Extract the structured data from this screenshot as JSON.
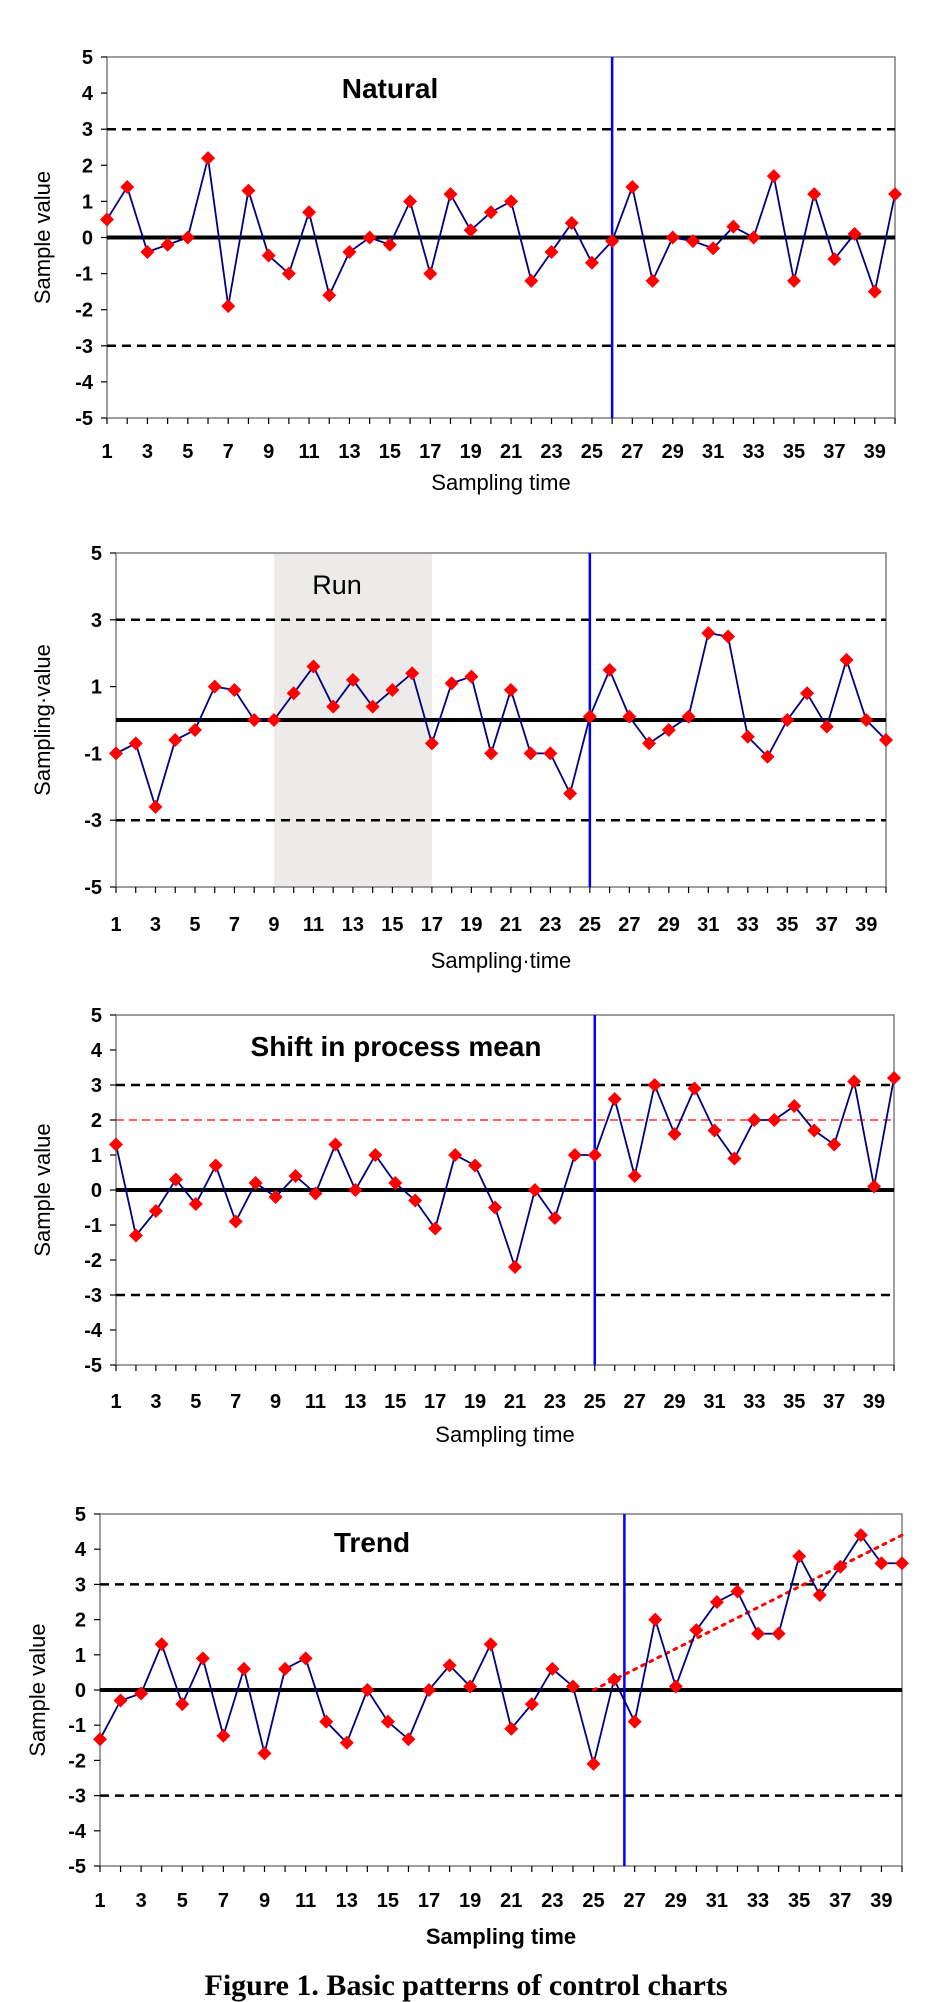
{
  "chart_data": [
    {
      "type": "line",
      "title": "Natural",
      "xlabel": "Sampling time",
      "ylabel": "Sample value",
      "ylim": [
        -5,
        5
      ],
      "yticks": [
        5,
        4,
        3,
        2,
        1,
        0,
        -1,
        -2,
        -3,
        -4,
        -5
      ],
      "xtick_labels": [
        1,
        3,
        5,
        7,
        9,
        11,
        13,
        15,
        17,
        19,
        21,
        23,
        25,
        27,
        29,
        31,
        33,
        35,
        37,
        39
      ],
      "control_limits": {
        "center": 0,
        "upper": 3,
        "lower": -3
      },
      "change_point": 26,
      "x": [
        1,
        2,
        3,
        4,
        5,
        6,
        7,
        8,
        9,
        10,
        11,
        12,
        13,
        14,
        15,
        16,
        17,
        18,
        19,
        20,
        21,
        22,
        23,
        24,
        25,
        26,
        27,
        28,
        29,
        30,
        31,
        32,
        33,
        34,
        35,
        36,
        37,
        38,
        39,
        40
      ],
      "values": [
        0.5,
        1.4,
        -0.4,
        -0.2,
        0.0,
        2.2,
        -1.9,
        1.3,
        -0.5,
        -1.0,
        0.7,
        -1.6,
        -0.4,
        0.0,
        -0.2,
        1.0,
        -1.0,
        1.2,
        0.2,
        0.7,
        1.0,
        -1.2,
        -0.4,
        0.4,
        -0.7,
        -0.1,
        1.4,
        -1.2,
        0.0,
        -0.1,
        -0.3,
        0.3,
        0.0,
        1.7,
        -1.2,
        1.2,
        -0.6,
        0.1,
        -1.5,
        1.2
      ],
      "line_color": "#000080",
      "marker_color": "#ff0000",
      "change_line_color": "#0000ff"
    },
    {
      "type": "line",
      "title": "Run",
      "xlabel": "Sampling·time",
      "ylabel": "Sampling·value",
      "ylim": [
        -5,
        5
      ],
      "yticks": [
        5,
        3,
        1,
        -1,
        -3,
        -5
      ],
      "xtick_labels": [
        1,
        3,
        5,
        7,
        9,
        11,
        13,
        15,
        17,
        19,
        21,
        23,
        25,
        27,
        29,
        31,
        33,
        35,
        37,
        39
      ],
      "control_limits": {
        "center": 0,
        "upper": 3,
        "lower": -3
      },
      "change_point": 25,
      "highlight_range": [
        9,
        17
      ],
      "x": [
        1,
        2,
        3,
        4,
        5,
        6,
        7,
        8,
        9,
        10,
        11,
        12,
        13,
        14,
        15,
        16,
        17,
        18,
        19,
        20,
        21,
        22,
        23,
        24,
        25,
        26,
        27,
        28,
        29,
        30,
        31,
        32,
        33,
        34,
        35,
        36,
        37,
        38,
        39,
        40
      ],
      "values": [
        -1.0,
        -0.7,
        -2.6,
        -0.6,
        -0.3,
        1.0,
        0.9,
        0.0,
        0.0,
        0.8,
        1.6,
        0.4,
        1.2,
        0.4,
        0.9,
        1.4,
        -0.7,
        1.1,
        1.3,
        -1.0,
        0.9,
        -1.0,
        -1.0,
        -2.2,
        0.1,
        1.5,
        0.1,
        -0.7,
        -0.3,
        0.1,
        2.6,
        2.5,
        -0.5,
        -1.1,
        0.0,
        0.8,
        -0.2,
        1.8,
        0.0,
        -0.6
      ],
      "line_color": "#000080",
      "marker_color": "#ff0000",
      "change_line_color": "#0000ff",
      "highlight_color": "#ecebea"
    },
    {
      "type": "line",
      "title": "Shift in process mean",
      "xlabel": "Sampling time",
      "ylabel": "Sample value",
      "ylim": [
        -5,
        5
      ],
      "yticks": [
        5,
        4,
        3,
        2,
        1,
        0,
        -1,
        -2,
        -3,
        -4,
        -5
      ],
      "xtick_labels": [
        1,
        3,
        5,
        7,
        9,
        11,
        13,
        15,
        17,
        19,
        21,
        23,
        25,
        27,
        29,
        31,
        33,
        35,
        37,
        39
      ],
      "control_limits": {
        "center": 0,
        "upper": 3,
        "lower": -3
      },
      "shifted_mean": 2,
      "change_point": 25,
      "x": [
        1,
        2,
        3,
        4,
        5,
        6,
        7,
        8,
        9,
        10,
        11,
        12,
        13,
        14,
        15,
        16,
        17,
        18,
        19,
        20,
        21,
        22,
        23,
        24,
        25,
        26,
        27,
        28,
        29,
        30,
        31,
        32,
        33,
        34,
        35,
        36,
        37,
        38,
        39,
        40
      ],
      "values": [
        1.3,
        -1.3,
        -0.6,
        0.3,
        -0.4,
        0.7,
        -0.9,
        0.2,
        -0.2,
        0.4,
        -0.1,
        1.3,
        0.0,
        1.0,
        0.2,
        -0.3,
        -1.1,
        1.0,
        0.7,
        -0.5,
        -2.2,
        0.0,
        -0.8,
        1.0,
        1.0,
        2.6,
        0.4,
        3.0,
        1.6,
        2.9,
        1.7,
        0.9,
        2.0,
        2.0,
        2.4,
        1.7,
        1.3,
        3.1,
        0.1,
        3.2
      ],
      "line_color": "#000080",
      "marker_color": "#ff0000",
      "change_line_color": "#0000ff",
      "shift_line_color": "#ff0000"
    },
    {
      "type": "line",
      "title": "Trend",
      "xlabel": "Sampling time",
      "ylabel": "Sample value",
      "ylim": [
        -5,
        5
      ],
      "yticks": [
        5,
        4,
        3,
        2,
        1,
        0,
        -1,
        -2,
        -3,
        -4,
        -5
      ],
      "xtick_labels": [
        1,
        3,
        5,
        7,
        9,
        11,
        13,
        15,
        17,
        19,
        21,
        23,
        25,
        27,
        29,
        31,
        33,
        35,
        37,
        39
      ],
      "control_limits": {
        "center": 0,
        "upper": 3,
        "lower": -3
      },
      "change_point": 26.5,
      "trend_line": {
        "x": [
          25,
          40
        ],
        "y": [
          0.0,
          4.4
        ]
      },
      "x": [
        1,
        2,
        3,
        4,
        5,
        6,
        7,
        8,
        9,
        10,
        11,
        12,
        13,
        14,
        15,
        16,
        17,
        18,
        19,
        20,
        21,
        22,
        23,
        24,
        25,
        26,
        27,
        28,
        29,
        30,
        31,
        32,
        33,
        34,
        35,
        36,
        37,
        38,
        39,
        40
      ],
      "values": [
        -1.4,
        -0.3,
        -0.1,
        1.3,
        -0.4,
        0.9,
        -1.3,
        0.6,
        -1.8,
        0.6,
        0.9,
        -0.9,
        -1.5,
        0.0,
        -0.9,
        -1.4,
        0.0,
        0.7,
        0.1,
        1.3,
        -1.1,
        -0.4,
        0.6,
        0.1,
        -2.1,
        0.3,
        -0.9,
        2.0,
        0.1,
        1.7,
        2.5,
        2.8,
        1.6,
        1.6,
        3.8,
        2.7,
        3.5,
        4.4,
        3.6,
        3.6
      ],
      "line_color": "#000080",
      "marker_color": "#ff0000",
      "change_line_color": "#0000ff",
      "trend_line_color": "#ff0000"
    }
  ],
  "caption": "Figure 1. Basic patterns of control charts"
}
